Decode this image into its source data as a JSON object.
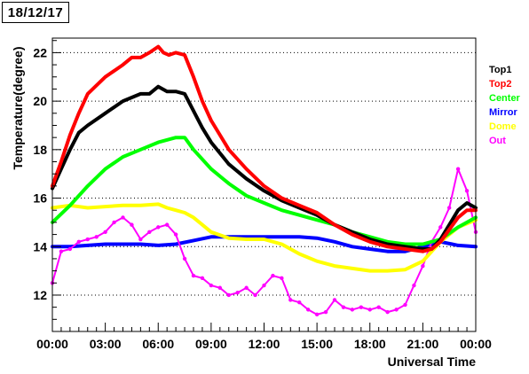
{
  "date_label": "18/12/17",
  "chart_data": {
    "type": "scatter",
    "title": "",
    "xlabel": "Universal Time",
    "ylabel": "Temperature(degree)",
    "xlim": [
      0,
      24
    ],
    "ylim": [
      10.5,
      22.6
    ],
    "x_ticks": [
      0,
      3,
      6,
      9,
      12,
      15,
      18,
      21,
      24
    ],
    "x_tick_labels": [
      "00:00",
      "03:00",
      "06:00",
      "09:00",
      "12:00",
      "15:00",
      "18:00",
      "21:00",
      "00:00"
    ],
    "y_ticks": [
      12,
      14,
      16,
      18,
      20,
      22
    ],
    "y_tick_labels": [
      "12",
      "14",
      "16",
      "18",
      "20",
      "22"
    ],
    "grid": "horizontal dotted",
    "legend_position": "right, outside plot",
    "series": [
      {
        "name": "Top1",
        "color": "#000000",
        "x": [
          0,
          0.5,
          1,
          1.5,
          2,
          3,
          4,
          5,
          5.5,
          6,
          6.5,
          7,
          7.5,
          8,
          8.5,
          9,
          10,
          11,
          12,
          13,
          14,
          15,
          16,
          17,
          18,
          19,
          20,
          21,
          21.5,
          22,
          22.5,
          23,
          23.5,
          24
        ],
        "y": [
          16.4,
          17.2,
          18.0,
          18.7,
          19.0,
          19.5,
          20.0,
          20.3,
          20.3,
          20.6,
          20.4,
          20.4,
          20.3,
          19.6,
          18.9,
          18.3,
          17.4,
          16.8,
          16.3,
          15.9,
          15.6,
          15.3,
          14.9,
          14.6,
          14.3,
          14.1,
          14.0,
          13.9,
          13.9,
          14.3,
          14.9,
          15.5,
          15.8,
          15.6
        ]
      },
      {
        "name": "Top2",
        "color": "#ff0000",
        "x": [
          0,
          0.5,
          1,
          1.5,
          2,
          3,
          4,
          4.5,
          5,
          5.5,
          6,
          6.3,
          6.6,
          7,
          7.5,
          8,
          8.5,
          9,
          10,
          11,
          12,
          13,
          14,
          15,
          16,
          17,
          18,
          19,
          20,
          21,
          21.5,
          22,
          22.5,
          23,
          23.5,
          24
        ],
        "y": [
          16.5,
          17.5,
          18.6,
          19.5,
          20.3,
          21.0,
          21.5,
          21.8,
          21.8,
          22.0,
          22.25,
          22.0,
          21.9,
          22.0,
          21.9,
          21.0,
          20.0,
          19.2,
          18.0,
          17.2,
          16.5,
          16.0,
          15.7,
          15.4,
          14.9,
          14.5,
          14.2,
          14.0,
          13.9,
          13.8,
          13.9,
          14.2,
          14.7,
          15.2,
          15.5,
          15.5
        ]
      },
      {
        "name": "Center",
        "color": "#00ff00",
        "x": [
          0,
          1,
          2,
          3,
          4,
          5,
          6,
          7,
          7.5,
          8,
          9,
          10,
          11,
          12,
          13,
          14,
          15,
          16,
          17,
          18,
          19,
          20,
          21,
          22,
          23,
          24
        ],
        "y": [
          15.0,
          15.7,
          16.5,
          17.2,
          17.7,
          18.0,
          18.3,
          18.5,
          18.5,
          18.0,
          17.2,
          16.6,
          16.1,
          15.8,
          15.5,
          15.3,
          15.1,
          14.9,
          14.6,
          14.4,
          14.2,
          14.1,
          14.1,
          14.3,
          14.8,
          15.2
        ]
      },
      {
        "name": "Mirror",
        "color": "#0000ff",
        "x": [
          0,
          1,
          2,
          3,
          4,
          5,
          6,
          7,
          8,
          9,
          10,
          11,
          12,
          13,
          14,
          15,
          16,
          17,
          18,
          19,
          20,
          21,
          22,
          23,
          24
        ],
        "y": [
          14.0,
          14.0,
          14.05,
          14.1,
          14.1,
          14.1,
          14.05,
          14.1,
          14.25,
          14.4,
          14.4,
          14.4,
          14.4,
          14.4,
          14.4,
          14.35,
          14.2,
          14.0,
          13.9,
          13.8,
          13.8,
          14.0,
          14.2,
          14.05,
          14.0
        ]
      },
      {
        "name": "Dome",
        "color": "#ffff00",
        "x": [
          0,
          1,
          2,
          3,
          4,
          5,
          6,
          6.5,
          7,
          7.5,
          8,
          9,
          10,
          11,
          12,
          13,
          14,
          15,
          16,
          17,
          18,
          19,
          20,
          21,
          22,
          23,
          24
        ],
        "y": [
          15.6,
          15.7,
          15.6,
          15.65,
          15.7,
          15.7,
          15.75,
          15.6,
          15.5,
          15.4,
          15.2,
          14.6,
          14.35,
          14.3,
          14.3,
          14.1,
          13.7,
          13.4,
          13.2,
          13.1,
          13.0,
          13.0,
          13.05,
          13.4,
          14.2,
          14.8,
          15.1
        ]
      },
      {
        "name": "Out",
        "color": "#ff00ff",
        "x": [
          0,
          0.5,
          1,
          1.5,
          2,
          2.5,
          3,
          3.5,
          4,
          4.5,
          5,
          5.5,
          6,
          6.5,
          7,
          7.5,
          8,
          8.5,
          9,
          9.5,
          10,
          10.5,
          11,
          11.5,
          12,
          12.5,
          13,
          13.5,
          14,
          14.5,
          15,
          15.5,
          16,
          16.5,
          17,
          17.5,
          18,
          18.5,
          19,
          19.5,
          20,
          20.5,
          21,
          21.5,
          22,
          22.5,
          23,
          23.5,
          24
        ],
        "y": [
          12.5,
          13.8,
          13.9,
          14.2,
          14.3,
          14.4,
          14.6,
          15.0,
          15.2,
          14.9,
          14.3,
          14.6,
          14.8,
          14.9,
          14.5,
          13.5,
          12.8,
          12.7,
          12.4,
          12.3,
          12.0,
          12.1,
          12.3,
          12.0,
          12.4,
          12.8,
          12.7,
          11.8,
          11.7,
          11.4,
          11.2,
          11.3,
          11.8,
          11.5,
          11.4,
          11.5,
          11.4,
          11.5,
          11.3,
          11.4,
          11.6,
          12.4,
          13.2,
          14.2,
          14.8,
          15.6,
          17.2,
          16.3,
          14.6
        ]
      }
    ]
  }
}
